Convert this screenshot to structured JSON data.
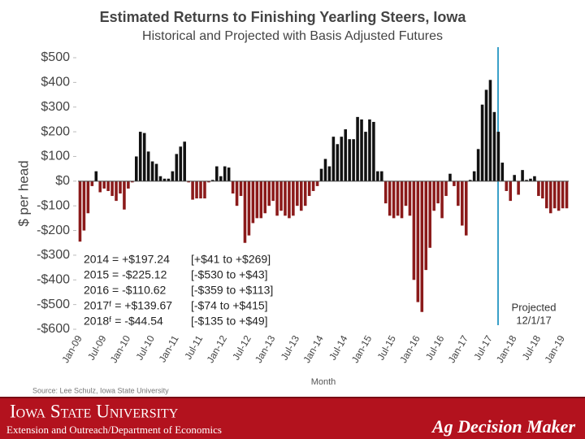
{
  "chart_data": {
    "type": "bar",
    "title": "Estimated Returns to Finishing Yearling Steers, Iowa",
    "subtitle": "Historical and Projected with Basis Adjusted Futures",
    "y_label": "$ per head",
    "x_label": "Month",
    "categories": [
      "Jan-09",
      null,
      null,
      null,
      null,
      null,
      "Jul-09",
      null,
      null,
      null,
      null,
      null,
      "Jan-10",
      null,
      null,
      null,
      null,
      null,
      "Jul-10",
      null,
      null,
      null,
      null,
      null,
      "Jan-11",
      null,
      null,
      null,
      null,
      null,
      "Jul-11",
      null,
      null,
      null,
      null,
      null,
      "Jan-12",
      null,
      null,
      null,
      null,
      null,
      "Jul-12",
      null,
      null,
      null,
      null,
      null,
      "Jan-13",
      null,
      null,
      null,
      null,
      null,
      "Jul-13",
      null,
      null,
      null,
      null,
      null,
      "Jan-14",
      null,
      null,
      null,
      null,
      null,
      "Jul-14",
      null,
      null,
      null,
      null,
      null,
      "Jan-15",
      null,
      null,
      null,
      null,
      null,
      "Jul-15",
      null,
      null,
      null,
      null,
      null,
      "Jan-16",
      null,
      null,
      null,
      null,
      null,
      "Jul-16",
      null,
      null,
      null,
      null,
      null,
      "Jan-17",
      null,
      null,
      null,
      null,
      null,
      "Jul-17",
      null,
      null,
      null,
      null,
      null,
      "Jan-18",
      null,
      null,
      null,
      null,
      null,
      "Jul-18",
      null,
      null,
      null,
      null,
      null,
      "Jan-19",
      null
    ],
    "values": [
      -245,
      -200,
      -130,
      -20,
      40,
      -45,
      -30,
      -40,
      -60,
      -80,
      -50,
      -115,
      -30,
      -5,
      100,
      200,
      195,
      120,
      80,
      70,
      20,
      10,
      10,
      40,
      110,
      140,
      160,
      -5,
      -75,
      -70,
      -70,
      -70,
      -5,
      5,
      60,
      20,
      60,
      55,
      -50,
      -100,
      -60,
      -250,
      -220,
      -170,
      -150,
      -150,
      -130,
      -100,
      -80,
      -140,
      -120,
      -140,
      -150,
      -140,
      -100,
      -120,
      -100,
      -60,
      -40,
      -20,
      50,
      90,
      60,
      180,
      150,
      180,
      210,
      170,
      170,
      260,
      250,
      200,
      250,
      240,
      40,
      40,
      -90,
      -140,
      -150,
      -140,
      -150,
      -100,
      -140,
      -400,
      -490,
      -530,
      -360,
      -270,
      -120,
      -90,
      -150,
      -60,
      30,
      -20,
      -100,
      -180,
      -220,
      5,
      40,
      130,
      310,
      370,
      410,
      280,
      200,
      75,
      -40,
      -80,
      25,
      -55,
      45,
      5,
      10,
      20,
      -60,
      -70,
      -110,
      -130,
      -110,
      -120,
      -110,
      -110
    ],
    "positive_color": "#111111",
    "negative_color": "#8b1a1a",
    "ylim": [
      -600,
      500
    ],
    "yticks": [
      {
        "value": -600,
        "label": "-$600"
      },
      {
        "value": -500,
        "label": "-$500"
      },
      {
        "value": -400,
        "label": "-$400"
      },
      {
        "value": -300,
        "label": "-$300"
      },
      {
        "value": -200,
        "label": "-$200"
      },
      {
        "value": -100,
        "label": "-$100"
      },
      {
        "value": 0,
        "label": "$0"
      },
      {
        "value": 100,
        "label": "$100"
      },
      {
        "value": 200,
        "label": "$200"
      },
      {
        "value": 300,
        "label": "$300"
      },
      {
        "value": 400,
        "label": "$400"
      },
      {
        "value": 500,
        "label": "$500"
      }
    ],
    "grid": false,
    "annotations": [
      [
        "2014 = +$197.24",
        "[+$41 to +$269]"
      ],
      [
        "2015 = -$225.12",
        "[-$530 to +$43]"
      ],
      [
        "2016 = -$110.62",
        "[-$359 to +$113]"
      ],
      [
        "2017ᶠ = +$139.67",
        "[-$74 to +$415]"
      ],
      [
        "2018ᶠ = -$44.54",
        "[-$135 to +$49]"
      ]
    ],
    "projected_label": "Projected",
    "projected_date": "12/1/17",
    "source": "Source: Lee Schulz, Iowa State University"
  },
  "footer": {
    "university": "Iowa State University",
    "department": "Extension and Outreach/Department of Economics",
    "brand": "Ag Decision Maker"
  }
}
